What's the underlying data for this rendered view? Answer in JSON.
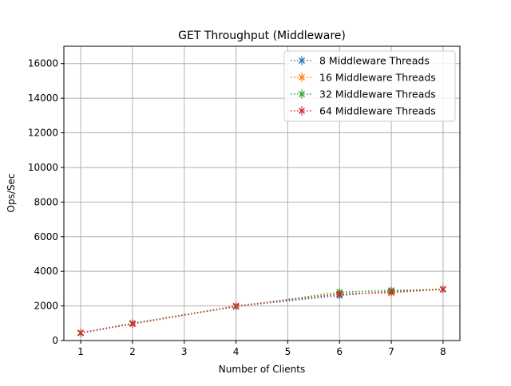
{
  "chart_data": {
    "type": "line",
    "title": "GET Throughput (Middleware)",
    "xlabel": "Number of Clients",
    "ylabel": "Ops/Sec",
    "x": [
      1,
      2,
      4,
      6,
      7,
      8
    ],
    "x_tick_labels": [
      "1",
      "2",
      "3",
      "4",
      "5",
      "6",
      "7",
      "8"
    ],
    "ylim": [
      0,
      17000
    ],
    "y_ticks": [
      0,
      2000,
      4000,
      6000,
      8000,
      10000,
      12000,
      14000,
      16000
    ],
    "grid": true,
    "legend_placement": "top-right",
    "series": [
      {
        "name": "8 Middleware Threads",
        "color": "#1f77b4",
        "values": [
          450,
          1000,
          1980,
          2600,
          2850,
          2950
        ]
      },
      {
        "name": "16 Middleware Threads",
        "color": "#ff7f0e",
        "values": [
          440,
          950,
          2000,
          2700,
          2750,
          2970
        ]
      },
      {
        "name": "32 Middleware Threads",
        "color": "#2ca02c",
        "values": [
          430,
          980,
          1960,
          2800,
          2900,
          2960
        ]
      },
      {
        "name": "64 Middleware Threads",
        "color": "#d62728",
        "values": [
          440,
          970,
          1990,
          2680,
          2800,
          2960
        ]
      }
    ]
  }
}
